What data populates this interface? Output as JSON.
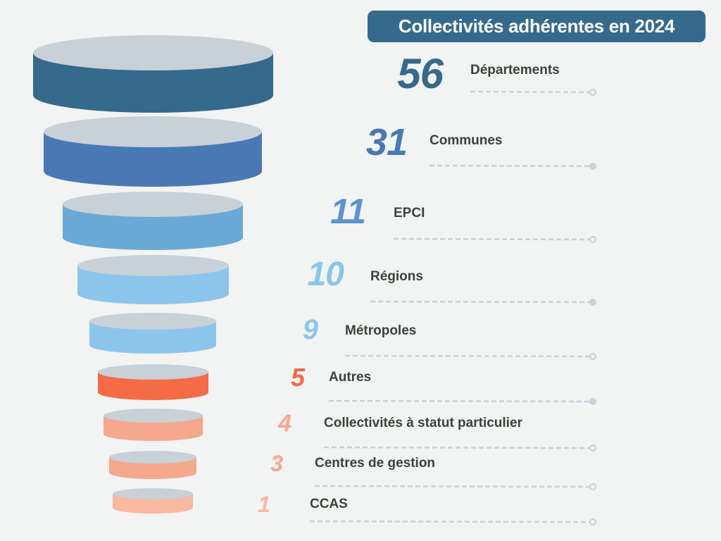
{
  "chart_data": {
    "type": "funnel",
    "title": "Collectivités adhérentes en 2024",
    "items": [
      {
        "value": "56",
        "label": "Départements",
        "color": "#366a8c",
        "num_color": "#366a8c"
      },
      {
        "value": "31",
        "label": "Communes",
        "color": "#4a78b4",
        "num_color": "#4a78b4"
      },
      {
        "value": "11",
        "label": "EPCI",
        "color": "#6aa9d6",
        "num_color": "#5a93d0"
      },
      {
        "value": "10",
        "label": "Régions",
        "color": "#8cc5ec",
        "num_color": "#8cc5ec"
      },
      {
        "value": "9",
        "label": "Métropoles",
        "color": "#8cc5ec",
        "num_color": "#8cc5ec"
      },
      {
        "value": "5",
        "label": "Autres",
        "color": "#f56b45",
        "num_color": "#f26b45"
      },
      {
        "value": "4",
        "label": "Collectivités à statut particulier",
        "color": "#f5a88c",
        "num_color": "#f5a88c"
      },
      {
        "value": "3",
        "label": "Centres de gestion",
        "color": "#f5a88c",
        "num_color": "#f5a88c"
      },
      {
        "value": "1",
        "label": "CCAS",
        "color": "#f9b8a0",
        "num_color": "#f9b8a0"
      }
    ]
  }
}
